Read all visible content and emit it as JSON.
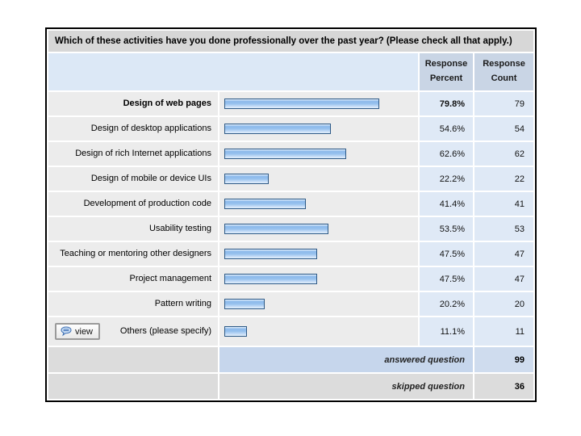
{
  "title": "Which of these activities have you done professionally over the past year? (Please check all that apply.)",
  "columns": {
    "percent_header": "Response Percent",
    "count_header": "Response Count"
  },
  "rows": [
    {
      "label": "Design of web pages",
      "value": 79.8,
      "percent": "79.8%",
      "count": "79",
      "bold": true,
      "view_button": false
    },
    {
      "label": "Design of desktop applications",
      "value": 54.6,
      "percent": "54.6%",
      "count": "54",
      "bold": false,
      "view_button": false
    },
    {
      "label": "Design of rich Internet applications",
      "value": 62.6,
      "percent": "62.6%",
      "count": "62",
      "bold": false,
      "view_button": false
    },
    {
      "label": "Design of mobile or device UIs",
      "value": 22.2,
      "percent": "22.2%",
      "count": "22",
      "bold": false,
      "view_button": false
    },
    {
      "label": "Development of production code",
      "value": 41.4,
      "percent": "41.4%",
      "count": "41",
      "bold": false,
      "view_button": false
    },
    {
      "label": "Usability testing",
      "value": 53.5,
      "percent": "53.5%",
      "count": "53",
      "bold": false,
      "view_button": false
    },
    {
      "label": "Teaching or mentoring other designers",
      "value": 47.5,
      "percent": "47.5%",
      "count": "47",
      "bold": false,
      "view_button": false
    },
    {
      "label": "Project management",
      "value": 47.5,
      "percent": "47.5%",
      "count": "47",
      "bold": false,
      "view_button": false
    },
    {
      "label": "Pattern writing",
      "value": 20.2,
      "percent": "20.2%",
      "count": "20",
      "bold": false,
      "view_button": false
    },
    {
      "label": "Others (please specify)",
      "value": 11.1,
      "percent": "11.1%",
      "count": "11",
      "bold": false,
      "view_button": true
    }
  ],
  "view_button": {
    "label": "view",
    "icon": "speech-bubble-icon"
  },
  "footer": {
    "answered_label": "answered question",
    "answered_count": "99",
    "skipped_label": "skipped question",
    "skipped_count": "36"
  },
  "colors": {
    "outer_border": "#000000",
    "title_bar_bg": "#d7d7d7",
    "header_left_bg": "#dce8f6",
    "header_cell_bg": "#c9d5e5",
    "row_gray_bg": "#ececec",
    "row_blue_bg": "#dfe9f6",
    "footer_gray_bg": "#dcdcdc",
    "answered_bg": "#c6d6ec",
    "answered_count_bg": "#cfdcee",
    "bar_border": "#2d5986",
    "bar_fill_mid": "#8cbaeb"
  },
  "chart_data": {
    "type": "bar",
    "orientation": "horizontal",
    "title": "Which of these activities have you done professionally over the past year? (Please check all that apply.)",
    "categories": [
      "Design of web pages",
      "Design of desktop applications",
      "Design of rich Internet applications",
      "Design of mobile or device UIs",
      "Development of production code",
      "Usability testing",
      "Teaching or mentoring other designers",
      "Project management",
      "Pattern writing",
      "Others (please specify)"
    ],
    "series": [
      {
        "name": "Response Percent",
        "values": [
          79.8,
          54.6,
          62.6,
          22.2,
          41.4,
          53.5,
          47.5,
          47.5,
          20.2,
          11.1
        ]
      },
      {
        "name": "Response Count",
        "values": [
          79,
          54,
          62,
          22,
          41,
          53,
          47,
          47,
          20,
          11
        ]
      }
    ],
    "xlim": [
      0,
      100
    ],
    "answered_question": 99,
    "skipped_question": 36,
    "legend_position": "none",
    "grid": false
  }
}
